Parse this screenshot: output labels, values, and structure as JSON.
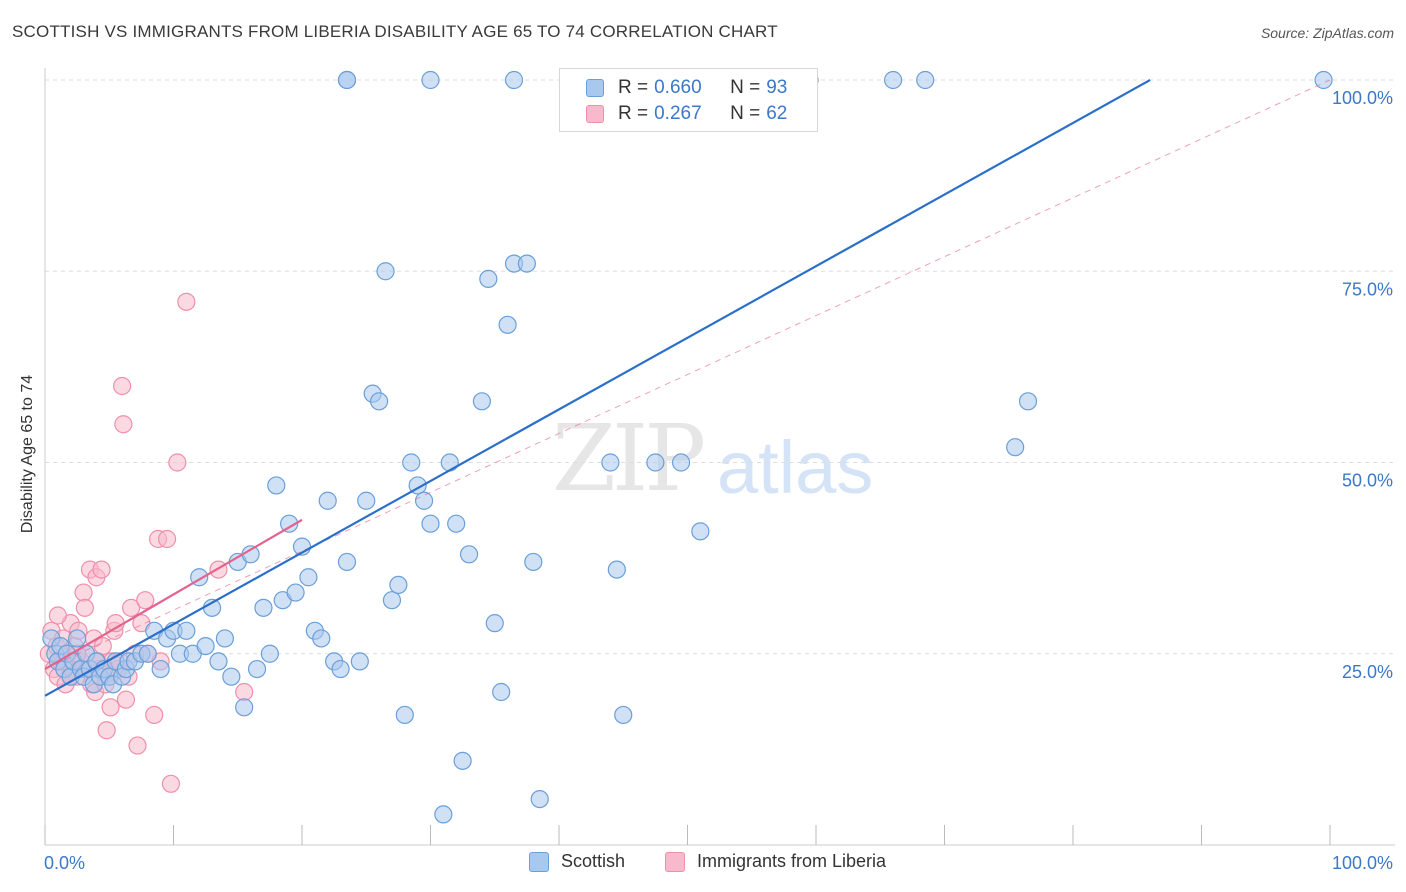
{
  "title": "SCOTTISH VS IMMIGRANTS FROM LIBERIA DISABILITY AGE 65 TO 74 CORRELATION CHART",
  "source": "Source: ZipAtlas.com",
  "watermark": {
    "zip": "ZIP",
    "atlas": "atlas"
  },
  "legend_top": {
    "rows": [
      {
        "r_label": "R = ",
        "r_value": "0.660",
        "n_label": "N = ",
        "n_value": "93"
      },
      {
        "r_label": "R = ",
        "r_value": "0.267",
        "n_label": "N = ",
        "n_value": "62"
      }
    ]
  },
  "colors": {
    "blue_fill": "#a9c8ee",
    "blue_stroke": "#6a9fd8",
    "blue_line": "#2a6fc9",
    "pink_fill": "#f7b9cb",
    "pink_stroke": "#ef8fab",
    "pink_line": "#e4638e",
    "axis_text": "#3b78c8",
    "grid": "#dddddd"
  },
  "chart_data": {
    "type": "scatter",
    "title": "SCOTTISH VS IMMIGRANTS FROM LIBERIA DISABILITY AGE 65 TO 74 CORRELATION CHART",
    "xlabel": "",
    "ylabel": "Disability Age 65 to 74",
    "xlim": [
      0,
      100
    ],
    "ylim": [
      0,
      100
    ],
    "x_tick_labels": [
      {
        "value": 0,
        "label": "0.0%"
      },
      {
        "value": 100,
        "label": "100.0%"
      }
    ],
    "y_tick_labels": [
      {
        "value": 25,
        "label": "25.0%"
      },
      {
        "value": 50,
        "label": "50.0%"
      },
      {
        "value": 75,
        "label": "75.0%"
      },
      {
        "value": 100,
        "label": "100.0%"
      }
    ],
    "grid": true,
    "legend_position": "bottom",
    "series": [
      {
        "name": "Scottish",
        "color": "#a9c8ee",
        "trend": {
          "x0": 0,
          "y0": 19.5,
          "x1": 86,
          "y1": 100,
          "style": "solid"
        },
        "points": [
          [
            0.5,
            27
          ],
          [
            0.8,
            25
          ],
          [
            1.0,
            24
          ],
          [
            1.2,
            26
          ],
          [
            1.5,
            23
          ],
          [
            1.7,
            25
          ],
          [
            2.0,
            22
          ],
          [
            2.2,
            24
          ],
          [
            2.5,
            27
          ],
          [
            2.8,
            23
          ],
          [
            3.0,
            22
          ],
          [
            3.2,
            25
          ],
          [
            3.5,
            23
          ],
          [
            3.8,
            21
          ],
          [
            4.0,
            24
          ],
          [
            4.3,
            22
          ],
          [
            4.6,
            23
          ],
          [
            5.0,
            22
          ],
          [
            5.3,
            21
          ],
          [
            5.5,
            24
          ],
          [
            6.0,
            22
          ],
          [
            6.3,
            23
          ],
          [
            6.5,
            24
          ],
          [
            7.0,
            24
          ],
          [
            7.5,
            25
          ],
          [
            8.0,
            25
          ],
          [
            8.5,
            28
          ],
          [
            9.0,
            23
          ],
          [
            9.5,
            27
          ],
          [
            10.0,
            28
          ],
          [
            10.5,
            25
          ],
          [
            11.0,
            28
          ],
          [
            11.5,
            25
          ],
          [
            12.0,
            35
          ],
          [
            12.5,
            26
          ],
          [
            13.0,
            31
          ],
          [
            13.5,
            24
          ],
          [
            14.0,
            27
          ],
          [
            14.5,
            22
          ],
          [
            15.0,
            37
          ],
          [
            15.5,
            18
          ],
          [
            16.0,
            38
          ],
          [
            16.5,
            23
          ],
          [
            17.0,
            31
          ],
          [
            17.5,
            25
          ],
          [
            18.0,
            47
          ],
          [
            18.5,
            32
          ],
          [
            19.0,
            42
          ],
          [
            19.5,
            33
          ],
          [
            20.0,
            39
          ],
          [
            20.5,
            35
          ],
          [
            21.0,
            28
          ],
          [
            21.5,
            27
          ],
          [
            22.0,
            45
          ],
          [
            22.5,
            24
          ],
          [
            23.0,
            23
          ],
          [
            23.5,
            37
          ],
          [
            24.5,
            24
          ],
          [
            25.0,
            45
          ],
          [
            25.5,
            59
          ],
          [
            26.0,
            58
          ],
          [
            26.5,
            75
          ],
          [
            27.0,
            32
          ],
          [
            27.5,
            34
          ],
          [
            28.0,
            17
          ],
          [
            28.5,
            50
          ],
          [
            29.0,
            47
          ],
          [
            29.5,
            45
          ],
          [
            30.0,
            42
          ],
          [
            31.0,
            4
          ],
          [
            31.5,
            50
          ],
          [
            32.0,
            42
          ],
          [
            32.5,
            11
          ],
          [
            33.0,
            38
          ],
          [
            34.0,
            58
          ],
          [
            34.5,
            74
          ],
          [
            35.0,
            29
          ],
          [
            35.5,
            20
          ],
          [
            36.0,
            68
          ],
          [
            36.5,
            76
          ],
          [
            37.5,
            76
          ],
          [
            38.0,
            37
          ],
          [
            38.5,
            6
          ],
          [
            44.0,
            50
          ],
          [
            44.5,
            36
          ],
          [
            45.0,
            17
          ],
          [
            47.5,
            50
          ],
          [
            49.5,
            50
          ],
          [
            51.0,
            41
          ],
          [
            75.5,
            52
          ],
          [
            76.5,
            58
          ],
          [
            23.5,
            100
          ]
        ],
        "top_edge_points_x": [
          23.5,
          30.0,
          36.5,
          59.5,
          66.0,
          68.5,
          99.5
        ]
      },
      {
        "name": "Immigrants from Liberia",
        "color": "#f7b9cb",
        "trend": {
          "x0": 0,
          "y0": 23,
          "x1": 20,
          "y1": 42.5,
          "style": "solid",
          "extended_dashed_to": {
            "x": 100,
            "y": 100
          }
        },
        "points": [
          [
            0.3,
            25
          ],
          [
            0.5,
            28
          ],
          [
            0.7,
            23
          ],
          [
            0.9,
            26
          ],
          [
            1.0,
            22
          ],
          [
            1.2,
            24
          ],
          [
            1.4,
            27
          ],
          [
            1.6,
            21
          ],
          [
            1.8,
            25
          ],
          [
            2.0,
            29
          ],
          [
            2.1,
            23
          ],
          [
            2.3,
            26
          ],
          [
            2.5,
            22
          ],
          [
            2.6,
            28
          ],
          [
            2.8,
            24
          ],
          [
            3.0,
            33
          ],
          [
            3.1,
            31
          ],
          [
            3.2,
            25
          ],
          [
            3.4,
            23
          ],
          [
            3.5,
            36
          ],
          [
            3.6,
            21
          ],
          [
            3.8,
            27
          ],
          [
            3.9,
            20
          ],
          [
            4.0,
            35
          ],
          [
            4.1,
            24
          ],
          [
            4.2,
            23
          ],
          [
            4.4,
            36
          ],
          [
            4.5,
            26
          ],
          [
            4.7,
            21
          ],
          [
            4.8,
            15
          ],
          [
            5.0,
            22
          ],
          [
            5.1,
            18
          ],
          [
            5.2,
            24
          ],
          [
            5.4,
            28
          ],
          [
            5.5,
            29
          ],
          [
            5.7,
            23
          ],
          [
            5.8,
            24
          ],
          [
            6.0,
            60
          ],
          [
            6.1,
            55
          ],
          [
            6.3,
            19
          ],
          [
            6.5,
            22
          ],
          [
            6.7,
            31
          ],
          [
            7.0,
            25
          ],
          [
            7.2,
            13
          ],
          [
            7.5,
            29
          ],
          [
            7.8,
            32
          ],
          [
            8.0,
            25
          ],
          [
            8.5,
            17
          ],
          [
            8.8,
            40
          ],
          [
            9.0,
            24
          ],
          [
            9.5,
            40
          ],
          [
            9.8,
            8
          ],
          [
            10.3,
            50
          ],
          [
            11.0,
            71
          ],
          [
            13.5,
            36
          ],
          [
            15.5,
            20
          ],
          [
            1.0,
            30
          ],
          [
            2.0,
            22
          ],
          [
            3.0,
            23
          ],
          [
            4.0,
            24
          ],
          [
            1.5,
            24
          ],
          [
            2.5,
            25
          ]
        ]
      }
    ]
  },
  "legend_bottom": {
    "items": [
      {
        "label": "Scottish"
      },
      {
        "label": "Immigrants from Liberia"
      }
    ]
  }
}
